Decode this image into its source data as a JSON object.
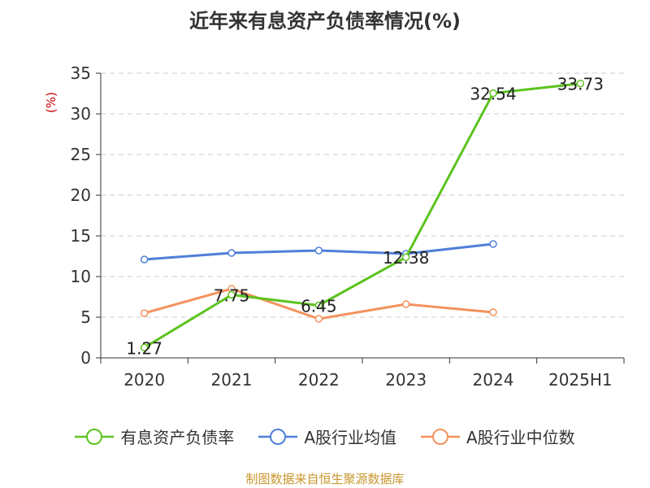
{
  "chart_data": {
    "type": "line",
    "title": "近年来有息资产负债率情况(%)",
    "ylabel": "(%)",
    "xlabel": "",
    "categories": [
      "2020",
      "2021",
      "2022",
      "2023",
      "2024",
      "2025H1"
    ],
    "ylim": [
      0,
      35
    ],
    "yticks": [
      0,
      5,
      10,
      15,
      20,
      25,
      30,
      35
    ],
    "grid": true,
    "legend_position": "bottom",
    "series": [
      {
        "name": "有息资产负债率",
        "color": "#5cc31e",
        "values": [
          1.27,
          7.75,
          6.45,
          12.38,
          32.54,
          33.73
        ],
        "show_labels": true
      },
      {
        "name": "A股行业均值",
        "color": "#4f7fd9",
        "values": [
          12.1,
          12.9,
          13.2,
          12.8,
          14.0,
          null
        ],
        "show_labels": false
      },
      {
        "name": "A股行业中位数",
        "color": "#f4925f",
        "values": [
          5.5,
          8.5,
          4.8,
          6.6,
          5.6,
          null
        ],
        "show_labels": false
      }
    ]
  },
  "source": "制图数据来自恒生聚源数据库"
}
